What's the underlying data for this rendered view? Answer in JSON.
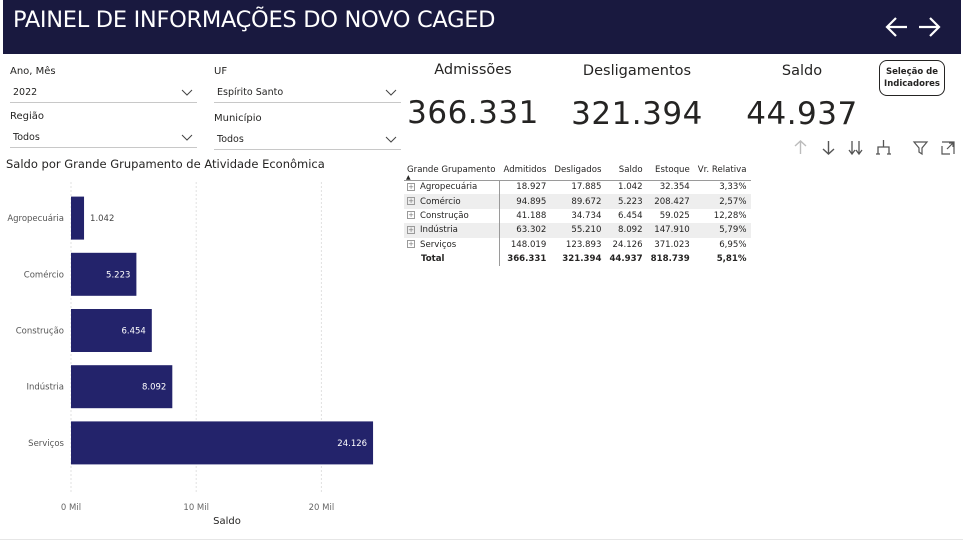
{
  "header": {
    "title": "PAINEL DE INFORMAÇÕES DO NOVO CAGED",
    "back_icon": "arrow-left-icon",
    "forward_icon": "arrow-right-icon"
  },
  "filters": {
    "ano_mes": {
      "label": "Ano, Mês",
      "value": "2022"
    },
    "uf": {
      "label": "UF",
      "value": "Espírito Santo"
    },
    "regiao": {
      "label": "Região",
      "value": "Todos"
    },
    "municipio": {
      "label": "Município",
      "value": "Todos"
    }
  },
  "kpis": {
    "admissoes": {
      "label": "Admissões",
      "value": "366.331"
    },
    "desligamentos": {
      "label": "Desligamentos",
      "value": "321.394"
    },
    "saldo": {
      "label": "Saldo",
      "value": "44.937"
    }
  },
  "indicator_button": {
    "line1": "Seleção de",
    "line2": "Indicadores"
  },
  "toolbar_icons": [
    "arrow-up-icon",
    "arrow-down-icon",
    "double-arrow-down-icon",
    "expand-hierarchy-icon",
    "filter-icon",
    "focus-mode-icon"
  ],
  "chart_title": "Saldo por Grande Grupamento de Atividade Econômica",
  "chart_data": {
    "type": "bar",
    "orientation": "horizontal",
    "categories": [
      "Agropecuária",
      "Comércio",
      "Construção",
      "Indústria",
      "Serviços"
    ],
    "values": [
      1042,
      5223,
      6454,
      8092,
      24126
    ],
    "data_labels": [
      "1.042",
      "5.223",
      "6.454",
      "8.092",
      "24.126"
    ],
    "xlabel": "Saldo",
    "ylabel": "",
    "xlim": [
      0,
      25000
    ],
    "x_ticks": [
      0,
      10000,
      20000
    ],
    "x_tick_labels": [
      "0 Mil",
      "10 Mil",
      "20 Mil"
    ],
    "bar_color": "#23236b",
    "grid": true
  },
  "table": {
    "columns": [
      "Grande Grupamento",
      "Admitidos",
      "Desligados",
      "Saldo",
      "Estoque",
      "Vr. Relativa"
    ],
    "rows": [
      [
        "Agropecuária",
        "18.927",
        "17.885",
        "1.042",
        "32.354",
        "3,33%"
      ],
      [
        "Comércio",
        "94.895",
        "89.672",
        "5.223",
        "208.427",
        "2,57%"
      ],
      [
        "Construção",
        "41.188",
        "34.734",
        "6.454",
        "59.025",
        "12,28%"
      ],
      [
        "Indústria",
        "63.302",
        "55.210",
        "8.092",
        "147.910",
        "5,79%"
      ],
      [
        "Serviços",
        "148.019",
        "123.893",
        "24.126",
        "371.023",
        "6,95%"
      ]
    ],
    "total": [
      "Total",
      "366.331",
      "321.394",
      "44.937",
      "818.739",
      "5,81%"
    ]
  },
  "colors": {
    "header_bg": "#19193f",
    "bar": "#23236b",
    "text": "#252423"
  }
}
